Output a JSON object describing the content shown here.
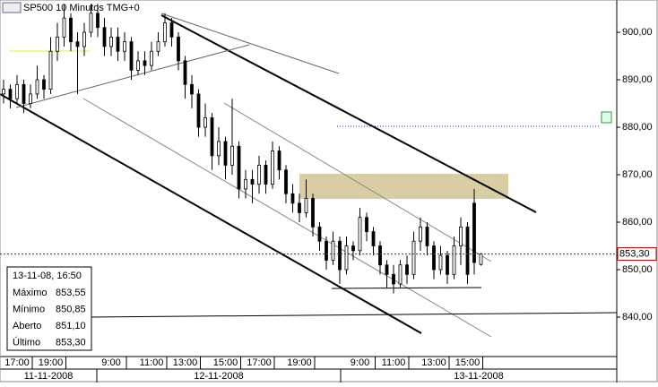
{
  "chart_data": {
    "type": "candlestick",
    "title": "SP500 10 Minutos TMG+0",
    "open": [
      887,
      888,
      886,
      889,
      885,
      887,
      890,
      888,
      896,
      899,
      903,
      898,
      897,
      900,
      904,
      901,
      897,
      899,
      896,
      898,
      892,
      894,
      893,
      896,
      898,
      902,
      899,
      894,
      889,
      887,
      880,
      882,
      874,
      877,
      872,
      876,
      867,
      869,
      868,
      872,
      868,
      875,
      871,
      866,
      864,
      862,
      865,
      859,
      856,
      852,
      856,
      850,
      855,
      854,
      861,
      858,
      855,
      851,
      849,
      847,
      851,
      849,
      856,
      859,
      855,
      850,
      853,
      849,
      855,
      859,
      864,
      851.1
    ],
    "high": [
      890,
      889,
      891,
      890,
      889,
      893,
      891,
      899,
      902,
      906,
      904,
      900,
      902,
      906,
      906,
      903,
      901,
      901,
      900,
      899,
      896,
      896,
      898,
      900,
      904,
      903,
      900,
      895,
      891,
      888,
      885,
      883,
      880,
      878,
      886,
      877,
      871,
      871,
      874,
      873,
      877,
      876,
      872,
      868,
      866,
      869,
      866,
      860,
      857,
      858,
      857,
      857,
      856,
      863,
      862,
      859,
      856,
      852,
      851,
      852,
      853,
      858,
      861,
      860,
      856,
      855,
      854,
      857,
      861,
      860,
      867,
      853.55
    ],
    "low": [
      885,
      884,
      885,
      883,
      884,
      886,
      886,
      887,
      894,
      897,
      896,
      887,
      895,
      899,
      899,
      895,
      895,
      894,
      894,
      890,
      891,
      891,
      892,
      895,
      897,
      897,
      892,
      886,
      884,
      878,
      878,
      871,
      872,
      869,
      870,
      865,
      865,
      864,
      866,
      866,
      867,
      869,
      864,
      862,
      860,
      861,
      857,
      854,
      850,
      851,
      847,
      849,
      852,
      853,
      856,
      853,
      849,
      846,
      845,
      846,
      847,
      848,
      854,
      853,
      848,
      849,
      847,
      848,
      851,
      847,
      849,
      850.85
    ],
    "close": [
      888,
      886,
      889,
      885,
      887,
      890,
      888,
      896,
      899,
      903,
      898,
      897,
      900,
      904,
      901,
      897,
      899,
      896,
      898,
      892,
      894,
      893,
      896,
      898,
      902,
      899,
      894,
      889,
      887,
      880,
      882,
      874,
      877,
      872,
      876,
      867,
      869,
      868,
      872,
      868,
      875,
      871,
      866,
      864,
      862,
      865,
      859,
      856,
      852,
      856,
      850,
      855,
      854,
      861,
      858,
      855,
      851,
      849,
      847,
      851,
      849,
      856,
      859,
      855,
      850,
      853,
      849,
      855,
      859,
      849,
      851.5,
      853.3
    ],
    "ylim": [
      831.7,
      906.8
    ],
    "yticks": [
      {
        "value": 840,
        "label": "840,00"
      },
      {
        "value": 850,
        "label": "850,00"
      },
      {
        "value": 860,
        "label": "860,00"
      },
      {
        "value": 870,
        "label": "870,00"
      },
      {
        "value": 880,
        "label": "880,00"
      },
      {
        "value": 890,
        "label": "890,00"
      },
      {
        "value": 900,
        "label": "900,00"
      }
    ],
    "xticks": [
      {
        "value": 2,
        "label": "17:00"
      },
      {
        "value": 7,
        "label": "19:00"
      },
      {
        "value": 16,
        "label": "9:00"
      },
      {
        "value": 22,
        "label": "11:00"
      },
      {
        "value": 27,
        "label": "13:00"
      },
      {
        "value": 33,
        "label": "15:00"
      },
      {
        "value": 38,
        "label": "17:00"
      },
      {
        "value": 44,
        "label": "19:00"
      },
      {
        "value": 53,
        "label": "9:00"
      },
      {
        "value": 58,
        "label": "11:00"
      },
      {
        "value": 64,
        "label": "13:00"
      },
      {
        "value": 69,
        "label": "15:00"
      }
    ],
    "dates": [
      "11-11-2008",
      "12-11-2008",
      "13-11-2008"
    ],
    "last_price": {
      "value": 853.3,
      "label": "853,30"
    },
    "info": {
      "datetime": "13-11-08, 16:50",
      "rows": [
        {
          "label": "Máximo",
          "value": "853,55"
        },
        {
          "label": "Mínimo",
          "value": "850,85"
        },
        {
          "label": "Aberto",
          "value": "851,10"
        },
        {
          "label": "Último",
          "value": "853,30"
        }
      ]
    }
  }
}
